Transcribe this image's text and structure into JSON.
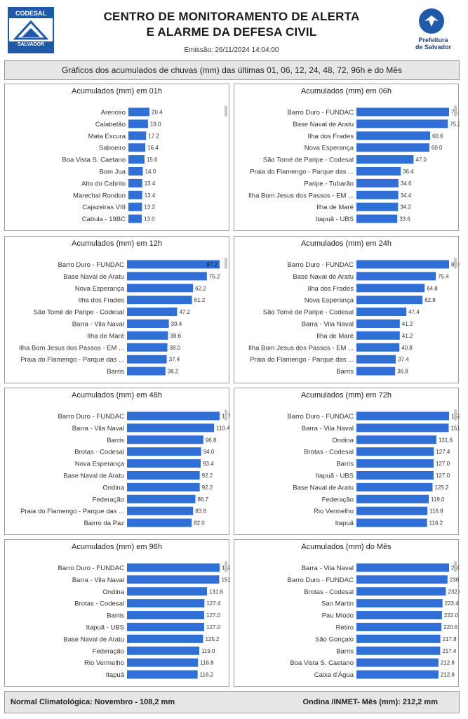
{
  "header": {
    "logo_left_top": "CODESAL",
    "logo_left_bottom": "SALVADOR",
    "logo_left_sub": "DEFESA CIVIL",
    "title_line1": "CENTRO DE MONITORAMENTO DE ALERTA",
    "title_line2": "E ALARME DA DEFESA CIVIL",
    "emissao": "Emissão: 26/11/2024 14:04:00",
    "logo_right_line1": "Prefeitura",
    "logo_right_line2": "de Salvador"
  },
  "subtitle": "Gráficos dos acumulados de chuvas (mm) das últimas 01, 06, 12, 24, 48, 72, 96h e do Mês",
  "chart_data": [
    {
      "type": "bar",
      "title": "Acumulados (mm) em 01h",
      "categories": [
        "Arenoso",
        "Calabetão",
        "Mata Escura",
        "Saboeiro",
        "Boa Vista S. Caetano",
        "Bom Jua",
        "Alto do Cabrito",
        "Marechal Rondon",
        "Cajazeiras VIII",
        "Cabula - 19BC"
      ],
      "values": [
        20.4,
        19.0,
        17.2,
        16.4,
        15.6,
        14.0,
        13.4,
        13.4,
        13.2,
        13.0
      ],
      "labels": [
        "20.4",
        "19.0",
        "17.2",
        "16.4",
        "15.6",
        "14.0",
        "13.4",
        "13.4",
        "13.2",
        "13.0"
      ]
    },
    {
      "type": "bar",
      "title": "Acumulados (mm) em 06h",
      "categories": [
        "Barro Duro - FUNDAC",
        "Base Naval de Aratu",
        "Ilha dos Frades",
        "Nova Esperança",
        "São Tomé de Paripe - Codesal",
        "Praia do Flamengo - Parque das ...",
        "Paripe - Tubarão",
        "Ilha Bom Jesus dos Passos - EM ...",
        "Ilha de Maré",
        "Itapuã - UBS"
      ],
      "values": [
        76.2,
        75.2,
        60.6,
        60.0,
        47.0,
        36.4,
        34.6,
        34.4,
        34.2,
        33.6
      ],
      "labels": [
        "76.2",
        "75.2",
        "60.6",
        "60.0",
        "47.0",
        "36.4",
        "34.6",
        "34.4",
        "34.2",
        "33.6"
      ]
    },
    {
      "type": "bar",
      "title": "Acumulados (mm) em 12h",
      "categories": [
        "Barro Duro - FUNDAC",
        "Base Naval de Aratu",
        "Nova Esperança",
        "Ilha dos Frades",
        "São Tomé de Paripe - Codesal",
        "Barra - Vila Naval",
        "Ilha de Maré",
        "Ilha Bom Jesus dos Passos - EM ...",
        "Praia do Flamengo - Parque das ...",
        "Barris"
      ],
      "values": [
        87.2,
        75.2,
        62.2,
        61.2,
        47.2,
        39.4,
        38.6,
        38.0,
        37.4,
        36.2
      ],
      "labels": [
        "87.2",
        "75.2",
        "62.2",
        "61.2",
        "47.2",
        "39.4",
        "38.6",
        "38.0",
        "37.4",
        "36.2"
      ]
    },
    {
      "type": "bar",
      "title": "Acumulados (mm) em 24h",
      "categories": [
        "Barro Duro - FUNDAC",
        "Base Naval de Aratu",
        "Ilha dos Frades",
        "Nova Esperança",
        "São Tomé de Paripe - Codesal",
        "Barra - Vila Naval",
        "Ilha de Maré",
        "Ilha Bom Jesus dos Passos - EM ...",
        "Praia do Flamengo - Parque das ...",
        "Barris"
      ],
      "values": [
        88.0,
        75.4,
        64.8,
        62.8,
        47.4,
        41.2,
        41.2,
        40.8,
        37.4,
        36.8
      ],
      "labels": [
        "88.0",
        "75.4",
        "64.8",
        "62.8",
        "47.4",
        "41.2",
        "41.2",
        "40.8",
        "37.4",
        "36.8"
      ]
    },
    {
      "type": "bar",
      "title": "Acumulados (mm) em 48h",
      "categories": [
        "Barro Duro - FUNDAC",
        "Barra - Vila Naval",
        "Barris",
        "Brotas - Codesal",
        "Nova Esperança",
        "Base Naval de Aratu",
        "Ondina",
        "Federação",
        "Praia do Flamengo - Parque das ...",
        "Bairro da Paz"
      ],
      "values": [
        117.4,
        110.4,
        96.8,
        94.0,
        93.4,
        92.2,
        92.2,
        86.7,
        83.8,
        82.0
      ],
      "labels": [
        "117.4",
        "110.4",
        "96.8",
        "94.0",
        "93.4",
        "92.2",
        "92.2",
        "86.7",
        "83.8",
        "82.0"
      ]
    },
    {
      "type": "bar",
      "title": "Acumulados (mm) em 72h",
      "categories": [
        "Barro Duro - FUNDAC",
        "Barra - Vila Naval",
        "Ondina",
        "Brotas - Codesal",
        "Barris",
        "Itapuã - UBS",
        "Base Naval de Aratu",
        "Federação",
        "Rio Vermelho",
        "Itapuã"
      ],
      "values": [
        152.4,
        151.8,
        131.6,
        127.4,
        127.0,
        127.0,
        125.2,
        119.0,
        116.8,
        116.2
      ],
      "labels": [
        "152.4",
        "151.8",
        "131.6",
        "127.4",
        "127.0",
        "127.0",
        "125.2",
        "119.0",
        "116.8",
        "116.2"
      ]
    },
    {
      "type": "bar",
      "title": "Acumulados (mm) em 96h",
      "categories": [
        "Barro Duro - FUNDAC",
        "Barra - Vila Naval",
        "Ondina",
        "Brotas - Codesal",
        "Barris",
        "Itapuã - UBS",
        "Base Naval de Aratu",
        "Federação",
        "Rio Vermelho",
        "Itapuã"
      ],
      "values": [
        152.4,
        151.8,
        131.6,
        127.4,
        127.0,
        127.0,
        125.2,
        119.0,
        116.8,
        116.2
      ],
      "labels": [
        "152.4",
        "151.8",
        "131.6",
        "127.4",
        "127.0",
        "127.0",
        "125.2",
        "119.0",
        "116.8",
        "116.2"
      ]
    },
    {
      "type": "bar",
      "title": "Acumulados (mm) do Mês",
      "categories": [
        "Barra - Vila Naval",
        "Barro Duro - FUNDAC",
        "Brotas - Codesal",
        "San Martin",
        "Pau Miúdo",
        "Retiro",
        "São Gonçalo",
        "Barris",
        "Boa Vista S. Caetano",
        "Caixa d'Água"
      ],
      "values": [
        240.4,
        236.4,
        232.0,
        223.4,
        222.0,
        220.6,
        217.8,
        217.4,
        212.8,
        212.8
      ],
      "labels": [
        "240.4",
        "236.4",
        "232.0",
        "223.4",
        "222.0",
        "220.6",
        "217.8",
        "217.4",
        "212.8",
        "212.8"
      ]
    }
  ],
  "colors": {
    "bar": "#2f6fd6",
    "label_inside": "#1a1a1a"
  },
  "footer": {
    "left": "Normal Climatológica:  Novembro  -  108,2 mm",
    "right": "Ondina /INMET- Mês (mm):   212,2  mm"
  }
}
